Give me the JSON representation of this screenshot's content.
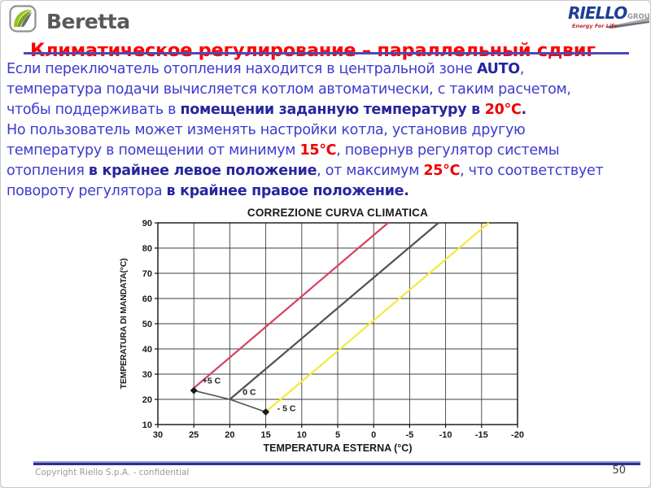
{
  "colors": {
    "body_blue": "#3b3bd0",
    "bold_navy": "#26269e",
    "accent_red": "#ee0000",
    "title_red": "#ff0000",
    "underline_blue": "#4a4ab8",
    "footer_line_light": "#9a9ad4",
    "footer_line_dark": "#2e2e96"
  },
  "header": {
    "beretta_logo_text": "Beretta",
    "riello_logo_text": "RIELLO",
    "riello_group_text": "GROUP",
    "riello_tagline": "Energy For Life",
    "title": "Климатическое регулирование – параллельный сдвиг"
  },
  "body": {
    "lines": [
      [
        {
          "s": "n",
          "t": "Если переключатель отопления находится в центральной зоне "
        },
        {
          "s": "b",
          "t": "AUTO"
        },
        {
          "s": "n",
          "t": ","
        }
      ],
      [
        {
          "s": "n",
          "t": "температура подачи вычисляется котлом автоматически, с таким расчетом,"
        }
      ],
      [
        {
          "s": "n",
          "t": "чтобы поддерживать в "
        },
        {
          "s": "b",
          "t": "помещении заданную температуру в "
        },
        {
          "s": "r",
          "t": "20°C"
        },
        {
          "s": "b",
          "t": "."
        }
      ],
      [
        {
          "s": "n",
          "t": "Но пользователь может изменять настройки котла, установив другую"
        }
      ],
      [
        {
          "s": "n",
          "t": "температуру в помещении от минимум "
        },
        {
          "s": "r",
          "t": "15°C"
        },
        {
          "s": "n",
          "t": ", повернув регулятор системы"
        }
      ],
      [
        {
          "s": "n",
          "t": "отопления "
        },
        {
          "s": "b",
          "t": "в крайнее левое положение"
        },
        {
          "s": "n",
          "t": ", от максимум "
        },
        {
          "s": "r",
          "t": "25°C"
        },
        {
          "s": "n",
          "t": ", что соответствует"
        }
      ],
      [
        {
          "s": "n",
          "t": "повороту регулятора "
        },
        {
          "s": "b",
          "t": "в крайнее правое положение."
        }
      ]
    ]
  },
  "chart_data": {
    "type": "line",
    "title": "CORREZIONE CURVA CLIMATICA",
    "xlabel": "TEMPERATURA ESTERNA (°C)",
    "ylabel": "TEMPERATURA DI MANDATA(°C)",
    "xlim": [
      30,
      -20
    ],
    "ylim": [
      10,
      90
    ],
    "x_reversed": true,
    "grid": true,
    "x_ticks": [
      30,
      25,
      20,
      15,
      10,
      5,
      0,
      -5,
      -10,
      -15,
      -20
    ],
    "y_ticks": [
      90,
      80,
      70,
      60,
      50,
      40,
      30,
      20,
      10
    ],
    "series": [
      {
        "name": "+5 C",
        "color": "#d8415f",
        "points": [
          [
            25,
            24.5
          ],
          [
            -2,
            90
          ]
        ]
      },
      {
        "name": "0 C",
        "color": "#4f4f58",
        "points": [
          [
            20,
            20
          ],
          [
            -9,
            90
          ]
        ]
      },
      {
        "name": "-5 C",
        "color": "#f3ea3d",
        "points": [
          [
            15,
            15
          ],
          [
            -16,
            90
          ]
        ]
      }
    ],
    "shift_line": {
      "color": "#4f4f58",
      "points": [
        [
          25,
          23.5
        ],
        [
          20,
          20
        ],
        [
          15,
          15
        ]
      ],
      "markers": [
        [
          25,
          23.5
        ],
        [
          15,
          15
        ]
      ]
    },
    "annotations": [
      {
        "text": "+5 C",
        "x": 23.8,
        "y": 26.3
      },
      {
        "text": "0 C",
        "x": 18.2,
        "y": 21.8
      },
      {
        "text": "- 5 C",
        "x": 13.4,
        "y": 15.3
      }
    ]
  },
  "footer": {
    "copyright": "Copyright  Riello S.p.A. - confidential",
    "page_number": "50"
  }
}
